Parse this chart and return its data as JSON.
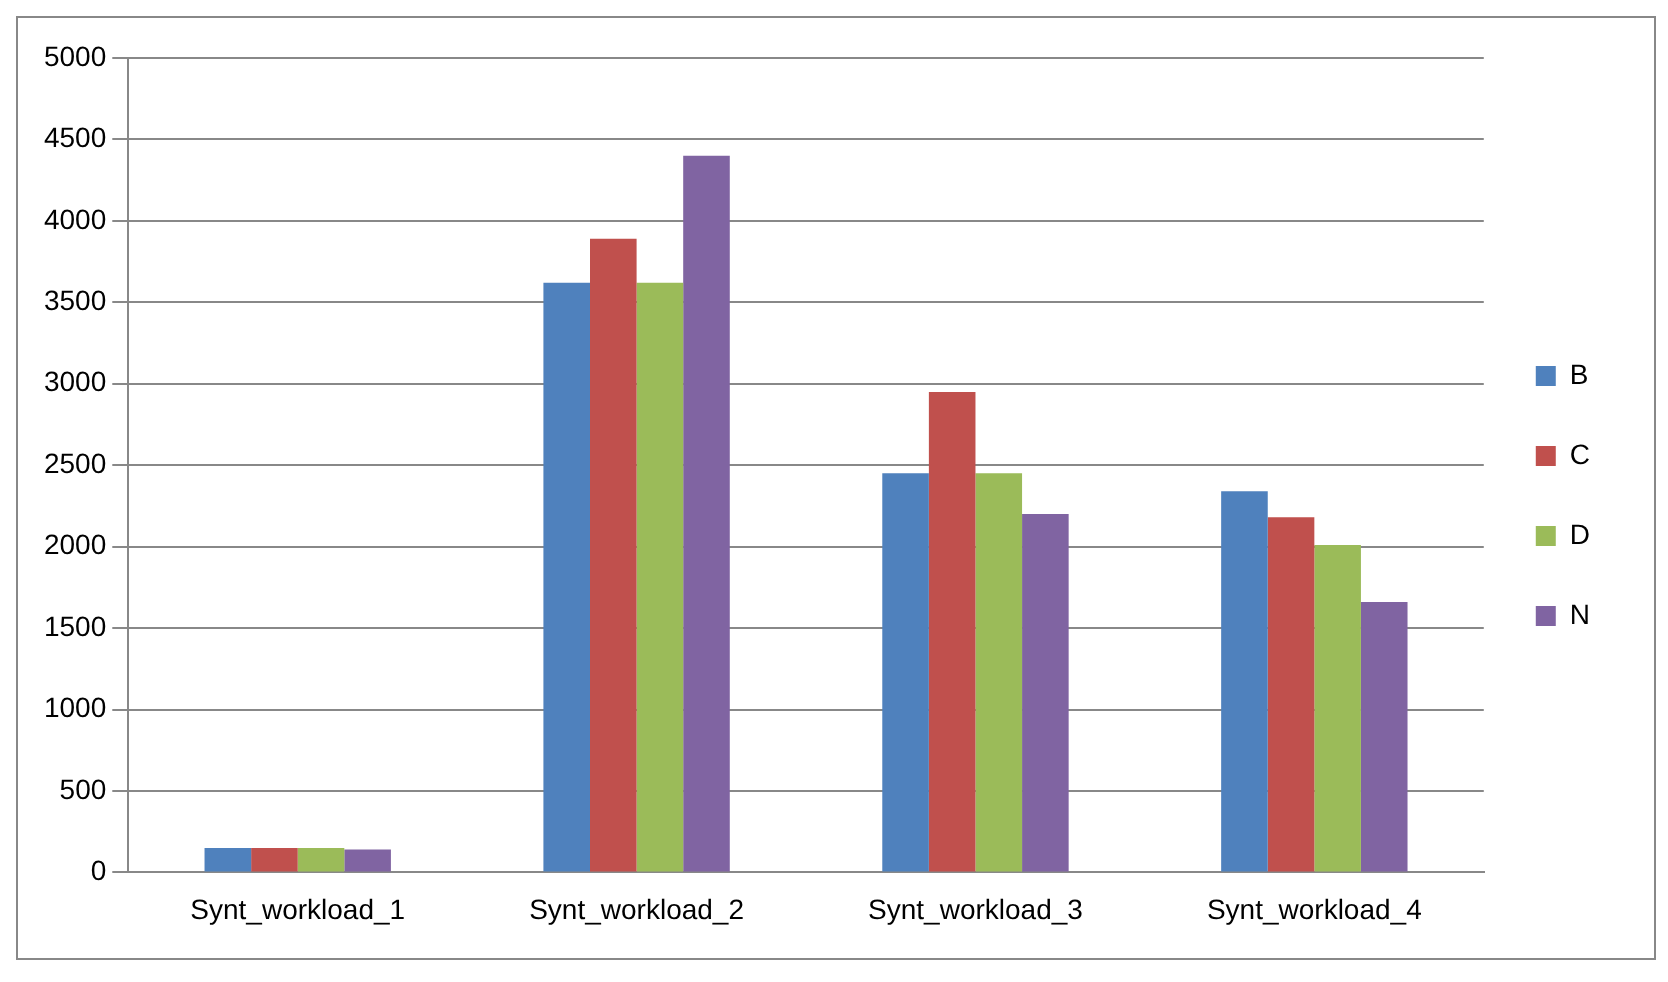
{
  "chart_data": {
    "type": "bar",
    "categories": [
      "Synt_workload_1",
      "Synt_workload_2",
      "Synt_workload_3",
      "Synt_workload_4"
    ],
    "series": [
      {
        "name": "B",
        "color": "#4f81bd",
        "values": [
          150,
          3620,
          2450,
          2340
        ]
      },
      {
        "name": "C",
        "color": "#c0504d",
        "values": [
          150,
          3890,
          2950,
          2180
        ]
      },
      {
        "name": "D",
        "color": "#9bbb59",
        "values": [
          150,
          3620,
          2450,
          2010
        ]
      },
      {
        "name": "N",
        "color": "#8064a2",
        "values": [
          140,
          4400,
          2200,
          1660
        ]
      }
    ],
    "ylim": [
      0,
      5000
    ],
    "yticks": [
      0,
      500,
      1000,
      1500,
      2000,
      2500,
      3000,
      3500,
      4000,
      4500,
      5000
    ],
    "grid": "y",
    "legend": "right"
  }
}
